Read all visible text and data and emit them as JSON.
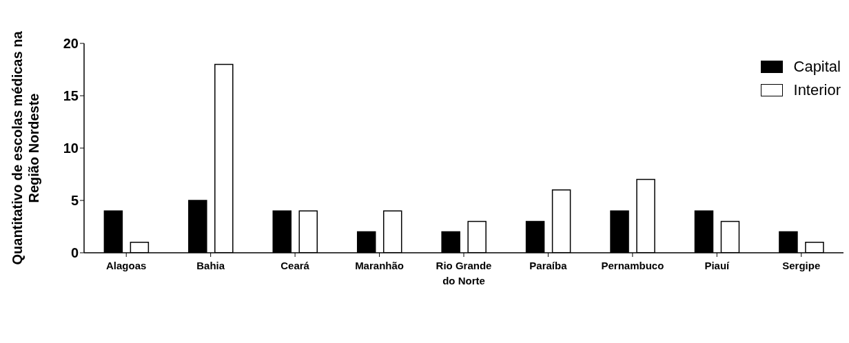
{
  "chart_data": {
    "type": "bar",
    "ylabel": "Quantitativo de escolas médicas na Região Nordeste",
    "categories": [
      "Alagoas",
      "Bahia",
      "Ceará",
      "Maranhão",
      "Rio Grande do Norte",
      "Paraíba",
      "Pernambuco",
      "Piauí",
      "Sergipe"
    ],
    "series": [
      {
        "name": "Capital",
        "color": "#000000",
        "values": [
          4,
          5,
          4,
          2,
          2,
          3,
          4,
          4,
          2
        ]
      },
      {
        "name": "Interior",
        "color": "#ffffff",
        "values": [
          1,
          18,
          4,
          4,
          3,
          6,
          7,
          3,
          1
        ]
      }
    ],
    "ylim": [
      0,
      20
    ],
    "yticks": [
      0,
      5,
      10,
      15,
      20
    ],
    "grid": false,
    "legend": "top right"
  }
}
